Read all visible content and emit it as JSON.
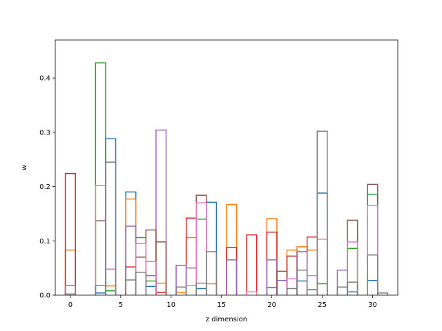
{
  "chart_data": {
    "type": "bar",
    "style": "step-outline histogram",
    "xlabel": "z dimension",
    "ylabel": "w",
    "xlim": [
      -1.5,
      32.5
    ],
    "ylim": [
      0,
      0.47
    ],
    "xticks": [
      0,
      5,
      10,
      15,
      20,
      25,
      30
    ],
    "yticks": [
      0.0,
      0.1,
      0.2,
      0.3,
      0.4
    ],
    "ytick_labels": [
      "0.0",
      "0.1",
      "0.2",
      "0.3",
      "0.4"
    ],
    "grid": false,
    "legend": "none",
    "bin_width": 1,
    "series": [
      {
        "color": "#1f77b4",
        "bars": [
          [
            3,
            0.004
          ],
          [
            4,
            0.288
          ],
          [
            6,
            0.19
          ],
          [
            8,
            0.016
          ],
          [
            13,
            0.012
          ],
          [
            14,
            0.171
          ],
          [
            20,
            0.014
          ],
          [
            23,
            0.026
          ],
          [
            24,
            0.01
          ],
          [
            25,
            0.188
          ],
          [
            28,
            0.006
          ],
          [
            30,
            0.027
          ]
        ]
      },
      {
        "color": "#ff7f0e",
        "bars": [
          [
            0,
            0.083
          ],
          [
            4,
            0.017
          ],
          [
            6,
            0.177
          ],
          [
            9,
            0.022
          ],
          [
            11,
            0.005
          ],
          [
            12,
            0.106
          ],
          [
            14,
            0.021
          ],
          [
            16,
            0.167
          ],
          [
            20,
            0.141
          ],
          [
            22,
            0.083
          ],
          [
            23,
            0.089
          ],
          [
            24,
            0.083
          ]
        ]
      },
      {
        "color": "#2ca02c",
        "bars": [
          [
            3,
            0.428
          ],
          [
            4,
            0.008
          ],
          [
            7,
            0.106
          ],
          [
            8,
            0.026
          ],
          [
            13,
            0.14
          ],
          [
            25,
            0.021
          ],
          [
            28,
            0.086
          ],
          [
            30,
            0.186
          ]
        ]
      },
      {
        "color": "#d62728",
        "bars": [
          [
            0,
            0.224
          ],
          [
            6,
            0.052
          ],
          [
            9,
            0.005
          ],
          [
            12,
            0.142
          ],
          [
            16,
            0.088
          ],
          [
            18,
            0.111
          ],
          [
            20,
            0.116
          ],
          [
            22,
            0.072
          ],
          [
            24,
            0.107
          ]
        ]
      },
      {
        "color": "#9467bd",
        "bars": [
          [
            0,
            0.018
          ],
          [
            6,
            0.127
          ],
          [
            8,
            0.036
          ],
          [
            9,
            0.304
          ],
          [
            11,
            0.055
          ],
          [
            12,
            0.05
          ],
          [
            16,
            0.065
          ],
          [
            20,
            0.065
          ],
          [
            21,
            0.027
          ],
          [
            23,
            0.08
          ],
          [
            27,
            0.046
          ]
        ]
      },
      {
        "color": "#8c564b",
        "bars": [
          [
            3,
            0.137
          ],
          [
            7,
            0.07
          ],
          [
            8,
            0.12
          ],
          [
            9,
            0.098
          ],
          [
            13,
            0.184
          ],
          [
            21,
            0.044
          ],
          [
            28,
            0.138
          ],
          [
            30,
            0.204
          ]
        ]
      },
      {
        "color": "#e377c2",
        "bars": [
          [
            3,
            0.202
          ],
          [
            4,
            0.048
          ],
          [
            7,
            0.095
          ],
          [
            8,
            0.062
          ],
          [
            12,
            0.018
          ],
          [
            13,
            0.17
          ],
          [
            18,
            0.006
          ],
          [
            22,
            0.03
          ],
          [
            24,
            0.036
          ],
          [
            25,
            0.103
          ],
          [
            28,
            0.098
          ],
          [
            30,
            0.165
          ]
        ]
      },
      {
        "color": "#7f7f7f",
        "bars": [
          [
            0,
            0.002
          ],
          [
            3,
            0.018
          ],
          [
            4,
            0.245
          ],
          [
            6,
            0.028
          ],
          [
            7,
            0.042
          ],
          [
            11,
            0.015
          ],
          [
            13,
            0.022
          ],
          [
            14,
            0.08
          ],
          [
            22,
            0.012
          ],
          [
            23,
            0.046
          ],
          [
            25,
            0.302
          ],
          [
            27,
            0.015
          ],
          [
            28,
            0.024
          ],
          [
            30,
            0.074
          ],
          [
            31,
            0.004
          ]
        ]
      }
    ]
  }
}
